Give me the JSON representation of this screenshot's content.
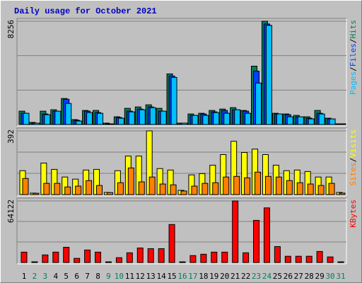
{
  "chart_data": [
    {
      "type": "bar",
      "title": "Daily usage for October 2021",
      "ylim": [
        0,
        8256
      ],
      "yticks": [
        8256
      ],
      "legend_separator": "/",
      "series": [
        {
          "name": "Hits",
          "color": "#00805c",
          "values": [
            1068,
            169,
            1068,
            1180,
            2079,
            393,
            1124,
            1124,
            112,
            618,
            1293,
            1405,
            1574,
            1293,
            4046,
            112,
            843,
            899,
            1124,
            1236,
            1349,
            1124,
            4665,
            8256,
            899,
            843,
            731,
            618,
            1124,
            506,
            56
          ]
        },
        {
          "name": "Files",
          "color": "#0040ff",
          "values": [
            899,
            112,
            843,
            1068,
            2023,
            337,
            1068,
            955,
            56,
            562,
            1068,
            1236,
            1405,
            1068,
            3878,
            112,
            731,
            843,
            1012,
            1124,
            1180,
            1068,
            4271,
            8037,
            843,
            787,
            618,
            506,
            899,
            450,
            56
          ]
        },
        {
          "name": "Pages",
          "color": "#00c0ff",
          "values": [
            899,
            112,
            787,
            1068,
            1686,
            281,
            955,
            899,
            56,
            506,
            1012,
            1180,
            1349,
            1068,
            3765,
            112,
            731,
            731,
            955,
            899,
            1180,
            899,
            3316,
            7924,
            843,
            618,
            618,
            450,
            843,
            450,
            56
          ]
        }
      ]
    },
    {
      "type": "bar",
      "ylim": [
        0,
        392
      ],
      "yticks": [
        392
      ],
      "legend_separator": "/",
      "series": [
        {
          "name": "Visits",
          "color": "#ffff00",
          "values": [
            147,
            9,
            194,
            155,
            108,
            95,
            151,
            155,
            13,
            147,
            237,
            237,
            392,
            160,
            151,
            26,
            121,
            129,
            181,
            246,
            328,
            259,
            280,
            246,
            181,
            147,
            151,
            142,
            108,
            108,
            13
          ]
        },
        {
          "name": "Sites",
          "color": "#ff8000",
          "values": [
            99,
            8,
            69,
            69,
            47,
            52,
            86,
            56,
            12,
            73,
            164,
            78,
            108,
            65,
            60,
            22,
            52,
            69,
            73,
            108,
            112,
            103,
            138,
            112,
            108,
            86,
            73,
            65,
            56,
            69,
            9
          ]
        }
      ]
    },
    {
      "type": "bar",
      "ylim": [
        0,
        64122
      ],
      "yticks": [
        64122
      ],
      "categories": [
        "1",
        "2",
        "3",
        "4",
        "5",
        "6",
        "7",
        "8",
        "9",
        "10",
        "11",
        "12",
        "13",
        "14",
        "15",
        "16",
        "17",
        "18",
        "19",
        "20",
        "21",
        "22",
        "23",
        "24",
        "25",
        "26",
        "27",
        "28",
        "29",
        "30",
        "31"
      ],
      "category_colors": [
        "#000000",
        "#00805c",
        "#00805c",
        "#000000",
        "#000000",
        "#000000",
        "#000000",
        "#000000",
        "#00805c",
        "#00805c",
        "#000000",
        "#000000",
        "#000000",
        "#000000",
        "#000000",
        "#00805c",
        "#00805c",
        "#000000",
        "#000000",
        "#000000",
        "#000000",
        "#000000",
        "#00805c",
        "#00805c",
        "#000000",
        "#000000",
        "#000000",
        "#000000",
        "#000000",
        "#00805c",
        "#00805c"
      ],
      "series": [
        {
          "name": "KBytes",
          "color": "#ff0000",
          "values": [
            10800,
            720,
            7900,
            10800,
            15850,
            4300,
            13000,
            10800,
            700,
            5000,
            10100,
            15100,
            14400,
            14400,
            39600,
            700,
            7200,
            8600,
            10800,
            10800,
            64122,
            10100,
            43900,
            56900,
            16600,
            6500,
            6500,
            6500,
            11500,
            5800,
            700
          ]
        }
      ]
    }
  ]
}
